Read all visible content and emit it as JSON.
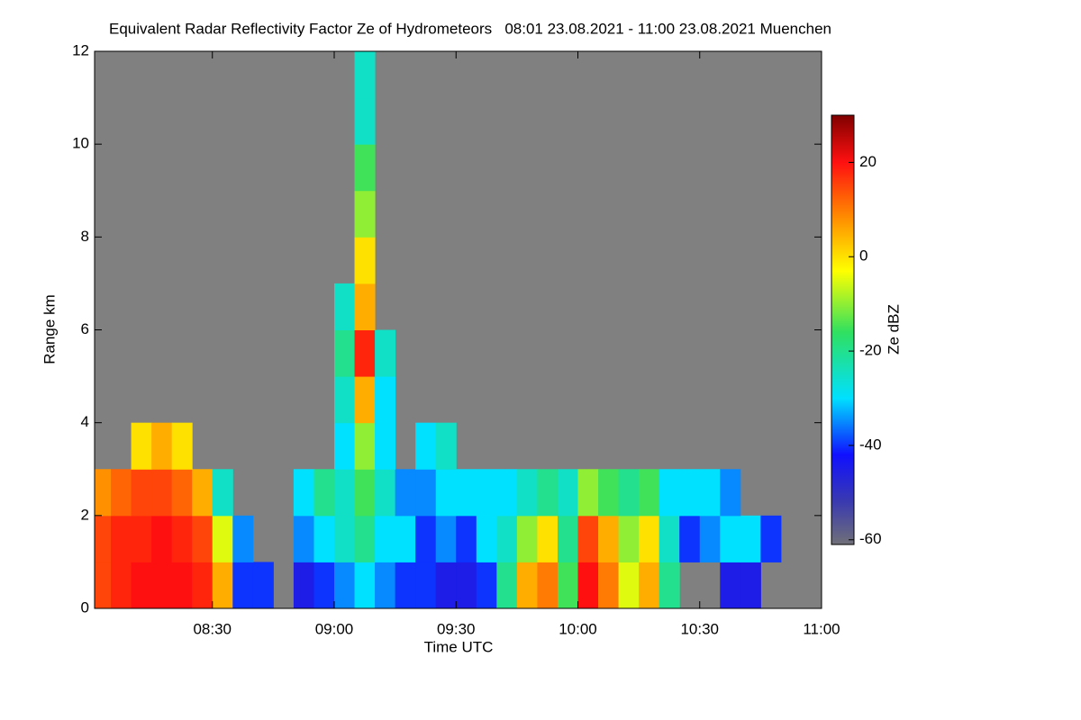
{
  "chart_data": {
    "type": "heatmap",
    "title": "Equivalent Radar Reflectivity Factor Ze of Hydrometeors   08:01 23.08.2021 - 11:00 23.08.2021 Muenchen",
    "xlabel": "Time UTC",
    "ylabel": "Range km",
    "background": "#808080",
    "xlim": [
      481,
      660
    ],
    "xticks": [
      {
        "value": 510,
        "label": "08:30"
      },
      {
        "value": 540,
        "label": "09:00"
      },
      {
        "value": 570,
        "label": "09:30"
      },
      {
        "value": 600,
        "label": "10:00"
      },
      {
        "value": 630,
        "label": "10:30"
      },
      {
        "value": 660,
        "label": "11:00"
      }
    ],
    "ylim": [
      0,
      12
    ],
    "yticks": [
      0,
      2,
      4,
      6,
      8,
      10,
      12
    ],
    "xbins": [
      481,
      485,
      490,
      495,
      500,
      505,
      510,
      515,
      520,
      525,
      530,
      535,
      540,
      545,
      550,
      555,
      560,
      565,
      570,
      575,
      580,
      585,
      590,
      595,
      600,
      605,
      610,
      615,
      620,
      625,
      630,
      635,
      640,
      645,
      650,
      655,
      660
    ],
    "ybins": [
      0,
      1,
      2,
      3,
      4,
      5,
      6,
      7,
      8,
      9,
      10,
      11,
      12
    ],
    "z": [
      [
        15,
        18,
        20,
        20,
        20,
        18,
        5,
        -40,
        -40,
        null,
        -45,
        -40,
        -35,
        -30,
        -35,
        -40,
        -40,
        -45,
        -45,
        -40,
        -20,
        5,
        10,
        -15,
        20,
        10,
        -5,
        5,
        -20,
        null,
        null,
        -45,
        -45,
        null,
        null,
        null
      ],
      [
        15,
        18,
        18,
        20,
        18,
        15,
        -5,
        -35,
        null,
        null,
        -35,
        -30,
        -25,
        -20,
        -30,
        -30,
        -40,
        -35,
        -40,
        -30,
        -25,
        -10,
        0,
        -20,
        15,
        5,
        -10,
        0,
        -25,
        -40,
        -35,
        -30,
        -30,
        -40,
        null,
        null
      ],
      [
        8,
        12,
        15,
        15,
        12,
        5,
        -25,
        null,
        null,
        null,
        -30,
        -20,
        -25,
        -15,
        -25,
        -35,
        -35,
        -30,
        -30,
        -30,
        -30,
        -25,
        -20,
        -25,
        -10,
        -15,
        -20,
        -15,
        -30,
        -30,
        -30,
        -35,
        null,
        null,
        null,
        null
      ],
      [
        null,
        null,
        0,
        5,
        0,
        null,
        null,
        null,
        null,
        null,
        null,
        null,
        -30,
        -10,
        -30,
        null,
        -30,
        -25,
        null,
        null,
        null,
        null,
        null,
        null,
        null,
        null,
        null,
        null,
        null,
        null,
        null,
        null,
        null,
        null,
        null,
        null
      ],
      [
        null,
        null,
        null,
        null,
        null,
        null,
        null,
        null,
        null,
        null,
        null,
        null,
        -25,
        5,
        -30,
        null,
        null,
        null,
        null,
        null,
        null,
        null,
        null,
        null,
        null,
        null,
        null,
        null,
        null,
        null,
        null,
        null,
        null,
        null,
        null,
        null
      ],
      [
        null,
        null,
        null,
        null,
        null,
        null,
        null,
        null,
        null,
        null,
        null,
        null,
        -20,
        18,
        -25,
        null,
        null,
        null,
        null,
        null,
        null,
        null,
        null,
        null,
        null,
        null,
        null,
        null,
        null,
        null,
        null,
        null,
        null,
        null,
        null,
        null
      ],
      [
        null,
        null,
        null,
        null,
        null,
        null,
        null,
        null,
        null,
        null,
        null,
        null,
        -25,
        5,
        null,
        null,
        null,
        null,
        null,
        null,
        null,
        null,
        null,
        null,
        null,
        null,
        null,
        null,
        null,
        null,
        null,
        null,
        null,
        null,
        null,
        null
      ],
      [
        null,
        null,
        null,
        null,
        null,
        null,
        null,
        null,
        null,
        null,
        null,
        null,
        null,
        0,
        null,
        null,
        null,
        null,
        null,
        null,
        null,
        null,
        null,
        null,
        null,
        null,
        null,
        null,
        null,
        null,
        null,
        null,
        null,
        null,
        null,
        null
      ],
      [
        null,
        null,
        null,
        null,
        null,
        null,
        null,
        null,
        null,
        null,
        null,
        null,
        null,
        -10,
        null,
        null,
        null,
        null,
        null,
        null,
        null,
        null,
        null,
        null,
        null,
        null,
        null,
        null,
        null,
        null,
        null,
        null,
        null,
        null,
        null,
        null
      ],
      [
        null,
        null,
        null,
        null,
        null,
        null,
        null,
        null,
        null,
        null,
        null,
        null,
        null,
        -15,
        null,
        null,
        null,
        null,
        null,
        null,
        null,
        null,
        null,
        null,
        null,
        null,
        null,
        null,
        null,
        null,
        null,
        null,
        null,
        null,
        null,
        null
      ],
      [
        null,
        null,
        null,
        null,
        null,
        null,
        null,
        null,
        null,
        null,
        null,
        null,
        null,
        -25,
        null,
        null,
        null,
        null,
        null,
        null,
        null,
        null,
        null,
        null,
        null,
        null,
        null,
        null,
        null,
        null,
        null,
        null,
        null,
        null,
        null,
        null
      ],
      [
        null,
        null,
        null,
        null,
        null,
        null,
        null,
        null,
        null,
        null,
        null,
        null,
        null,
        -25,
        null,
        null,
        null,
        null,
        null,
        null,
        null,
        null,
        null,
        null,
        null,
        null,
        null,
        null,
        null,
        null,
        null,
        null,
        null,
        null,
        null,
        null
      ]
    ],
    "colorscale": [
      [
        -61,
        "#707078"
      ],
      [
        -52,
        "#3a3ab0"
      ],
      [
        -42,
        "#1010ff"
      ],
      [
        -30,
        "#00e0ff"
      ],
      [
        -16,
        "#30e060"
      ],
      [
        -3,
        "#ffff00"
      ],
      [
        8,
        "#ff9000"
      ],
      [
        20,
        "#ff1010"
      ],
      [
        30,
        "#800000"
      ]
    ],
    "colorbar": {
      "label": "Ze dBZ",
      "lim": [
        -61,
        30
      ],
      "ticks": [
        -60,
        -40,
        -20,
        0,
        20
      ]
    }
  }
}
